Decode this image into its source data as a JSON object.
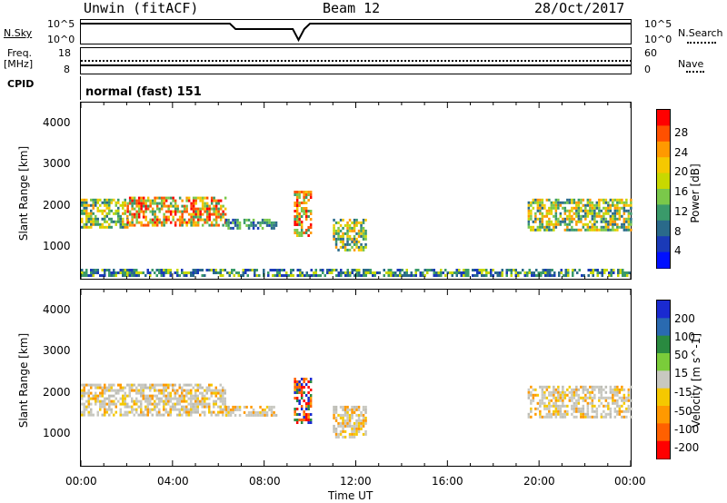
{
  "header": {
    "radar_label": "Unwin (fitACF)",
    "beam_label": "Beam 12",
    "date_label": "28/Oct/2017"
  },
  "panels": {
    "noise": {
      "left_label": "N.Sky",
      "right_label": "N.Search",
      "left_ticks": [
        "10^5",
        "10^0"
      ],
      "right_ticks": [
        "10^5",
        "10^0"
      ]
    },
    "freq": {
      "left_label_line1": "Freq.",
      "left_label_line2": "[MHz]",
      "right_label": "Nave",
      "left_ticks": [
        "18",
        "8"
      ],
      "right_ticks": [
        "60",
        "0"
      ]
    },
    "cpid": {
      "left_label": "CPID",
      "mode_text": "normal (fast) 151"
    }
  },
  "chart_data": [
    {
      "type": "heatmap",
      "name": "power",
      "ylabel": "Slant Range [km]",
      "xlabel": "Time UT",
      "ylim": [
        200,
        4600
      ],
      "y_ticks": [
        "4000",
        "3000",
        "2000",
        "1000"
      ],
      "x_ticks": [
        "00:00",
        "04:00",
        "08:00",
        "12:00",
        "16:00",
        "20:00",
        "00:00"
      ],
      "colorbar": {
        "label": "Power [dB]",
        "ticks": [
          "28",
          "24",
          "20",
          "16",
          "12",
          "8",
          "4"
        ],
        "colors": [
          "#ff0000",
          "#ff5000",
          "#ff9900",
          "#f5c800",
          "#c8d800",
          "#7ac84a",
          "#3a9a6a",
          "#2a6a8a",
          "#1a3ab8",
          "#0010ff"
        ]
      },
      "bands": [
        {
          "t0": 0.0,
          "t1": 2.0,
          "r0": 1500,
          "r1": 2200,
          "level": "high"
        },
        {
          "t0": 2.0,
          "t1": 6.3,
          "r0": 1550,
          "r1": 2250,
          "level": "peak"
        },
        {
          "t0": 6.3,
          "t1": 8.5,
          "r0": 1450,
          "r1": 1700,
          "level": "mid"
        },
        {
          "t0": 9.3,
          "t1": 10.0,
          "r0": 1300,
          "r1": 2400,
          "level": "peak"
        },
        {
          "t0": 11.0,
          "t1": 12.4,
          "r0": 900,
          "r1": 1700,
          "level": "high"
        },
        {
          "t0": 19.5,
          "t1": 24.0,
          "r0": 1400,
          "r1": 2200,
          "level": "high"
        },
        {
          "t0": 0.0,
          "t1": 24.0,
          "r0": 250,
          "r1": 450,
          "level": "low"
        }
      ]
    },
    {
      "type": "heatmap",
      "name": "velocity",
      "ylabel": "Slant Range [km]",
      "xlabel": "Time UT",
      "ylim": [
        200,
        4600
      ],
      "y_ticks": [
        "4000",
        "3000",
        "2000",
        "1000"
      ],
      "x_ticks": [
        "00:00",
        "04:00",
        "08:00",
        "12:00",
        "16:00",
        "20:00",
        "00:00"
      ],
      "colorbar": {
        "label": "Velocity [m s^-1]",
        "ticks": [
          "200",
          "100",
          "50",
          "15",
          "-15",
          "-50",
          "-100",
          "-200"
        ],
        "colors": [
          "#1a2ad0",
          "#2a6ab0",
          "#2a8a40",
          "#7acc3a",
          "#c8c8c0",
          "#f5c800",
          "#ff9900",
          "#ff6000",
          "#ff0000"
        ]
      },
      "bands": [
        {
          "t0": 0.0,
          "t1": 6.3,
          "r0": 1500,
          "r1": 2250,
          "level": "ground"
        },
        {
          "t0": 6.3,
          "t1": 8.5,
          "r0": 1450,
          "r1": 1700,
          "level": "ground"
        },
        {
          "t0": 9.3,
          "t1": 10.0,
          "r0": 1300,
          "r1": 2400,
          "level": "neg"
        },
        {
          "t0": 11.0,
          "t1": 12.4,
          "r0": 900,
          "r1": 1700,
          "level": "ground"
        },
        {
          "t0": 19.5,
          "t1": 24.0,
          "r0": 1400,
          "r1": 2200,
          "level": "ground"
        }
      ]
    }
  ]
}
